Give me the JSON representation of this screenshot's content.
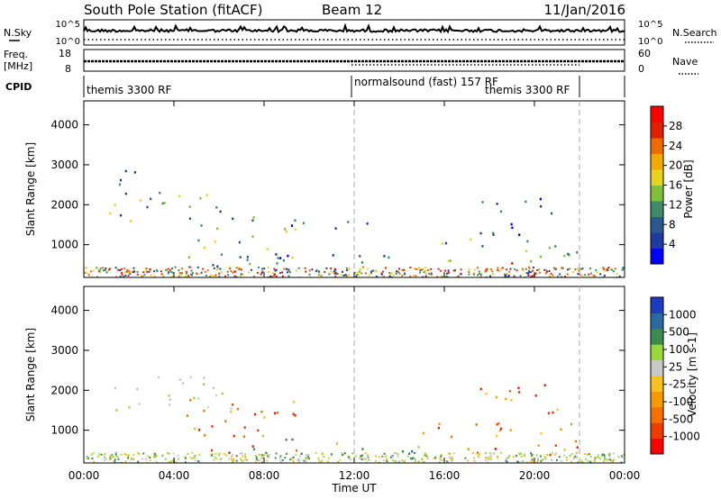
{
  "header": {
    "title": "South Pole Station (fitACF)",
    "beam": "Beam 12",
    "date": "11/Jan/2016"
  },
  "noise_panel": {
    "left_label": "N.Sky",
    "right_label": "N.Search",
    "left_ticks": [
      "10^5",
      "10^0"
    ],
    "right_ticks": [
      "10^5",
      "10^0"
    ]
  },
  "freq_panel": {
    "left_label_1": "Freq.",
    "left_label_2": "[MHz]",
    "right_label": "Nave",
    "left_ticks": [
      "18",
      "8"
    ],
    "right_ticks": [
      "60",
      "0"
    ]
  },
  "cpid_panel": {
    "label": "CPID",
    "segments": [
      {
        "text": "themis 3300 RF",
        "start_hour": 0
      },
      {
        "text": "normalsound (fast) 157 RF",
        "start_hour": 12
      },
      {
        "text": "themis 3300 RF",
        "start_hour": 22
      }
    ]
  },
  "x_axis": {
    "label": "Time UT",
    "ticks": [
      "00:00",
      "04:00",
      "08:00",
      "12:00",
      "16:00",
      "20:00",
      "00:00"
    ],
    "tick_hours": [
      0,
      4,
      8,
      12,
      16,
      20,
      24
    ]
  },
  "chart_data": [
    {
      "type": "heatmap",
      "panel": "power",
      "ylabel": "Slant Range [km]",
      "y_ticks": [
        1000,
        2000,
        3000,
        4000
      ],
      "ylim": [
        180,
        4600
      ],
      "xlim": [
        0,
        24
      ],
      "colorbar": {
        "label": "Power [dB]",
        "ticks": [
          "28",
          "24",
          "20",
          "16",
          "12",
          "8",
          "4"
        ],
        "colors": [
          "#0000ff",
          "#1e3ca0",
          "#2a5a8c",
          "#3e8a6a",
          "#7fbf3a",
          "#e8d21e",
          "#f2a900",
          "#ef6b00",
          "#e02000",
          "#ff0000"
        ]
      },
      "echo_regions": [
        {
          "t0": 0.5,
          "t1": 3.6,
          "r0": 1500,
          "r1": 2400,
          "level": "mid"
        },
        {
          "t0": 0.5,
          "t1": 3.0,
          "r0": 2500,
          "r1": 2900,
          "level": "low"
        },
        {
          "t0": 3.5,
          "t1": 6.5,
          "r0": 1800,
          "r1": 2300,
          "level": "mid"
        },
        {
          "t0": 4.5,
          "t1": 9.5,
          "r0": 400,
          "r1": 1800,
          "level": "mid"
        },
        {
          "t0": 8.5,
          "t1": 11.5,
          "r0": 400,
          "r1": 900,
          "level": "low"
        },
        {
          "t0": 9.0,
          "t1": 13.0,
          "r0": 1400,
          "r1": 1700,
          "level": "low"
        },
        {
          "t0": 12.0,
          "t1": 15.0,
          "r0": 300,
          "r1": 900,
          "level": "mid"
        },
        {
          "t0": 14.5,
          "t1": 21.5,
          "r0": 350,
          "r1": 600,
          "level": "high"
        },
        {
          "t0": 15.0,
          "t1": 22.0,
          "r0": 600,
          "r1": 1200,
          "level": "mid"
        },
        {
          "t0": 17.5,
          "t1": 21.0,
          "r0": 1200,
          "r1": 2200,
          "level": "low"
        }
      ]
    },
    {
      "type": "heatmap",
      "panel": "velocity",
      "ylabel": "Slant Range [km]",
      "y_ticks": [
        1000,
        2000,
        3000,
        4000
      ],
      "ylim": [
        180,
        4600
      ],
      "xlim": [
        0,
        24
      ],
      "colorbar": {
        "label": "Velocity [m s-1]",
        "ticks": [
          "1000",
          "500",
          "100",
          "25",
          "-25",
          "-100",
          "-500",
          "-1000"
        ],
        "colors": [
          "#ff0000",
          "#ef3c00",
          "#f47000",
          "#f59a00",
          "#f8c020",
          "#c8c8c8",
          "#9ad83a",
          "#3c8a50",
          "#2a6aa0",
          "#1e3cc0"
        ]
      },
      "echo_regions": [
        {
          "t0": 0.5,
          "t1": 6.5,
          "r0": 1500,
          "r1": 2400,
          "level": "gray"
        },
        {
          "t0": 4.5,
          "t1": 9.5,
          "r0": 400,
          "r1": 1800,
          "level": "neg"
        },
        {
          "t0": 7.5,
          "t1": 11.5,
          "r0": 400,
          "r1": 900,
          "level": "pos"
        },
        {
          "t0": 12.0,
          "t1": 15.0,
          "r0": 300,
          "r1": 900,
          "level": "pos"
        },
        {
          "t0": 14.5,
          "t1": 22.0,
          "r0": 350,
          "r1": 1200,
          "level": "neg"
        },
        {
          "t0": 17.5,
          "t1": 21.0,
          "r0": 1200,
          "r1": 2200,
          "level": "neg"
        }
      ]
    }
  ]
}
